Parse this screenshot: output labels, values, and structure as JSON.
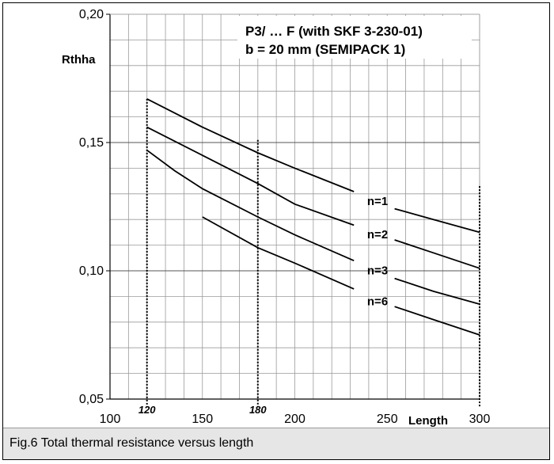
{
  "caption": "Fig.6 Total thermal resistance versus length",
  "chart_data": {
    "type": "line",
    "title": "P3/ … F (with SKF 3-230-01)",
    "subtitle": "b = 20 mm (SEMIPACK 1)",
    "xlabel": "Length",
    "ylabel": "Rthha",
    "xlim": [
      100,
      300
    ],
    "ylim": [
      0.05,
      0.2
    ],
    "xticks": [
      {
        "value": 100,
        "label": "100",
        "emph": false
      },
      {
        "value": 120,
        "label": "120",
        "emph": true
      },
      {
        "value": 150,
        "label": "150",
        "emph": false
      },
      {
        "value": 180,
        "label": "180",
        "emph": true
      },
      {
        "value": 200,
        "label": "200",
        "emph": false
      },
      {
        "value": 250,
        "label": "250",
        "emph": false
      },
      {
        "value": 300,
        "label": "300",
        "emph": false
      }
    ],
    "yticks": [
      {
        "value": 0.05,
        "label": "0,05"
      },
      {
        "value": 0.1,
        "label": "0,10"
      },
      {
        "value": 0.15,
        "label": "0,15"
      },
      {
        "value": 0.2,
        "label": "0,20"
      }
    ],
    "grid": true,
    "marker_lines": [
      {
        "x": 120,
        "y_top": 0.167
      },
      {
        "x": 180,
        "y_top": 0.151
      },
      {
        "x": 300,
        "y_top": 0.133
      }
    ],
    "series": [
      {
        "name": "n=1",
        "points": [
          [
            120,
            0.167
          ],
          [
            150,
            0.156
          ],
          [
            180,
            0.146
          ],
          [
            200,
            0.14
          ],
          [
            235,
            0.13
          ],
          [
            250,
            0.125
          ],
          [
            275,
            0.12
          ],
          [
            300,
            0.115
          ]
        ],
        "label_at": [
          240,
          0.1275
        ],
        "break": [
          232,
          254
        ]
      },
      {
        "name": "n=2",
        "points": [
          [
            120,
            0.156
          ],
          [
            150,
            0.145
          ],
          [
            180,
            0.134
          ],
          [
            200,
            0.126
          ],
          [
            235,
            0.117
          ],
          [
            250,
            0.113
          ],
          [
            275,
            0.107
          ],
          [
            300,
            0.101
          ]
        ],
        "label_at": [
          240,
          0.1145
        ],
        "break": [
          232,
          254
        ]
      },
      {
        "name": "n=3",
        "points": [
          [
            120,
            0.147
          ],
          [
            135,
            0.139
          ],
          [
            150,
            0.132
          ],
          [
            180,
            0.121
          ],
          [
            200,
            0.114
          ],
          [
            235,
            0.103
          ],
          [
            250,
            0.098
          ],
          [
            275,
            0.092
          ],
          [
            300,
            0.087
          ]
        ],
        "label_at": [
          240,
          0.1005
        ],
        "break": [
          232,
          254
        ]
      },
      {
        "name": "n=6",
        "points": [
          [
            150,
            0.121
          ],
          [
            180,
            0.109
          ],
          [
            200,
            0.103
          ],
          [
            235,
            0.092
          ],
          [
            250,
            0.087
          ],
          [
            275,
            0.081
          ],
          [
            300,
            0.075
          ]
        ],
        "label_at": [
          240,
          0.0885
        ],
        "break": [
          232,
          254
        ]
      }
    ]
  }
}
